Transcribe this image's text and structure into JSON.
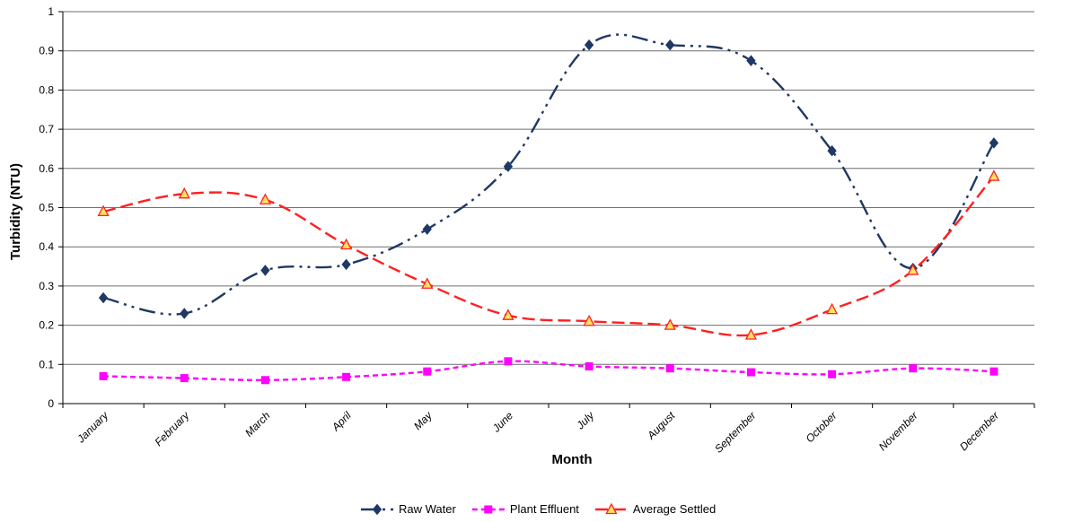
{
  "chart_data": {
    "type": "line",
    "title": "",
    "xlabel": "Month",
    "ylabel": "Turbidity (NTU)",
    "ylim": [
      0,
      1
    ],
    "yticks": [
      "0",
      "0.1",
      "0.2",
      "0.3",
      "0.4",
      "0.5",
      "0.6",
      "0.7",
      "0.8",
      "0.9",
      "1"
    ],
    "grid": "horizontal",
    "legend_position": "bottom",
    "categories": [
      "January",
      "February",
      "March",
      "April",
      "May",
      "June",
      "July",
      "August",
      "September",
      "October",
      "November",
      "December"
    ],
    "series": [
      {
        "name": "Raw Water",
        "color": "#1f3864",
        "dash": "long-dash-dot-dot",
        "marker": "diamond",
        "values": [
          0.27,
          0.23,
          0.34,
          0.355,
          0.445,
          0.605,
          0.915,
          0.915,
          0.875,
          0.645,
          0.345,
          0.665
        ]
      },
      {
        "name": "Plant Effluent",
        "color": "#ff00ff",
        "dash": "short-dash",
        "marker": "square",
        "values": [
          0.07,
          0.065,
          0.06,
          0.068,
          0.082,
          0.108,
          0.095,
          0.09,
          0.08,
          0.075,
          0.09,
          0.082
        ]
      },
      {
        "name": "Average Settled",
        "color": "#ff2020",
        "dash": "long-dash",
        "marker": "triangle",
        "values": [
          0.49,
          0.535,
          0.52,
          0.405,
          0.305,
          0.225,
          0.21,
          0.2,
          0.175,
          0.24,
          0.34,
          0.58
        ]
      }
    ]
  }
}
